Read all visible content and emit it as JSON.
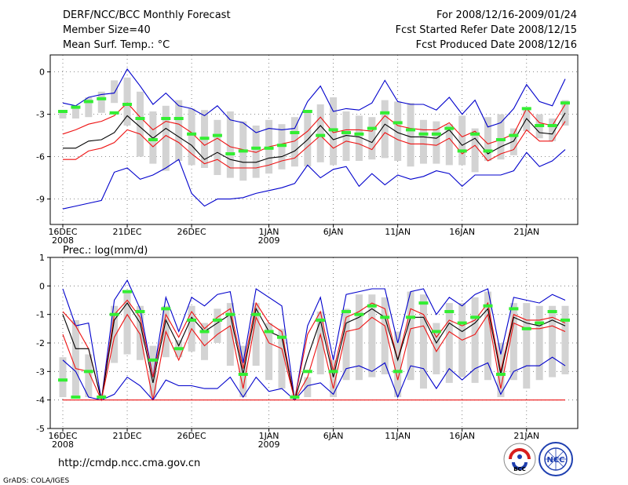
{
  "header": {
    "title": "DERF/NCC/BCC Monthly Forecast",
    "member_size": "Member Size=40",
    "variable": "Mean Surf. Temp.: °C",
    "period": "For 2008/12/16-2009/01/24",
    "fcst_started": "Fcst Started Refer Date 2008/12/15",
    "fcst_produced": "Fcst Produced Date 2008/12/16"
  },
  "footer": {
    "url": "http://cmdp.ncc.cma.gov.cn",
    "grads": "GrADS: COLA/IGES",
    "logo_bcc": "BCC",
    "logo_ncc": "NCC"
  },
  "colors": {
    "box": "#d3d3d3",
    "obs": "#33ee33",
    "mean": "#000000",
    "sd": "#ee1111",
    "extreme": "#0000cc",
    "grid": "#666666"
  },
  "chart_data": [
    {
      "type": "line",
      "title": "Mean Surf. Temp.: °C",
      "xlabel": "",
      "ylabel": "",
      "x_days": 40,
      "x_tick_labels": [
        "16DEC",
        "21DEC",
        "26DEC",
        "1JAN",
        "6JAN",
        "11JAN",
        "16JAN",
        "21JAN"
      ],
      "x_tick_days": [
        1,
        6,
        11,
        17,
        22,
        27,
        32,
        37
      ],
      "x_year_labels": [
        {
          "day": 1,
          "label": "2008"
        },
        {
          "day": 17,
          "label": "2009"
        }
      ],
      "ylim": [
        -10.8,
        1.2
      ],
      "yticks": [
        0,
        -3,
        -6,
        -9
      ],
      "ytick_labels": [
        "0",
        "-3",
        "-6",
        "-9"
      ],
      "box_top": [
        -2.8,
        -2.4,
        -1.8,
        -1.4,
        -0.6,
        -0.4,
        -1.4,
        -2.8,
        -2.4,
        -2.0,
        -2.6,
        -2.7,
        -3.4,
        -2.8,
        -3.5,
        -3.8,
        -3.4,
        -3.7,
        -3.2,
        -2.8,
        -2.3,
        -1.8,
        -2.8,
        -3.1,
        -3.2,
        -2.0,
        -2.1,
        -2.2,
        -3.4,
        -3.5,
        -3.7,
        -3.1,
        -4.0,
        -3.2,
        -3.0,
        -4.0,
        -2.5,
        -3.0,
        -3.3,
        -2.0
      ],
      "box_bottom": [
        -3.3,
        -3.3,
        -3.2,
        -2.9,
        -2.2,
        -3.8,
        -6.0,
        -6.5,
        -7.0,
        -6.3,
        -6.6,
        -6.8,
        -7.3,
        -7.5,
        -7.7,
        -7.5,
        -7.2,
        -6.9,
        -6.7,
        -6.7,
        -6.4,
        -6.6,
        -6.3,
        -6.3,
        -6.2,
        -6.1,
        -6.3,
        -6.7,
        -6.5,
        -6.5,
        -6.6,
        -6.6,
        -7.1,
        -6.3,
        -6.2,
        -5.9,
        -4.2,
        -4.7,
        -4.9,
        -3.8
      ],
      "series": [
        {
          "name": "max",
          "values": [
            -2.2,
            -2.4,
            -1.8,
            -1.6,
            -1.5,
            0.2,
            -1.0,
            -2.3,
            -1.5,
            -2.4,
            -2.6,
            -3.1,
            -2.4,
            -3.4,
            -3.6,
            -4.3,
            -4.0,
            -4.1,
            -4.0,
            -2.1,
            -1.0,
            -2.8,
            -2.6,
            -2.7,
            -2.2,
            -0.6,
            -2.1,
            -2.3,
            -2.3,
            -2.7,
            -1.8,
            -3.0,
            -2.0,
            -3.9,
            -3.6,
            -2.6,
            -0.9,
            -2.1,
            -2.4,
            -0.5
          ]
        },
        {
          "name": "sd_plus",
          "values": [
            -4.4,
            -4.1,
            -3.7,
            -3.5,
            -3.1,
            -2.2,
            -3.2,
            -4.1,
            -3.5,
            -3.7,
            -4.3,
            -5.2,
            -4.7,
            -5.3,
            -5.5,
            -5.7,
            -5.3,
            -5.1,
            -4.9,
            -4.2,
            -3.2,
            -4.3,
            -4.1,
            -4.1,
            -4.2,
            -3.1,
            -3.8,
            -4.0,
            -4.1,
            -4.1,
            -3.6,
            -4.6,
            -4.2,
            -5.1,
            -4.8,
            -4.4,
            -2.6,
            -3.6,
            -3.8,
            -2.3
          ]
        },
        {
          "name": "mean",
          "values": [
            -5.4,
            -5.4,
            -4.9,
            -4.8,
            -4.3,
            -3.1,
            -3.9,
            -4.7,
            -4.0,
            -4.6,
            -5.2,
            -6.2,
            -5.7,
            -6.2,
            -6.4,
            -6.4,
            -6.1,
            -6.0,
            -5.6,
            -4.8,
            -3.8,
            -4.8,
            -4.5,
            -4.6,
            -5.0,
            -3.7,
            -4.3,
            -4.6,
            -4.6,
            -4.7,
            -4.1,
            -5.2,
            -4.7,
            -5.8,
            -5.3,
            -4.9,
            -3.3,
            -4.3,
            -4.4,
            -2.9
          ]
        },
        {
          "name": "sd_minus",
          "values": [
            -6.2,
            -6.2,
            -5.6,
            -5.4,
            -5.0,
            -4.1,
            -4.4,
            -5.3,
            -4.5,
            -5.0,
            -5.8,
            -6.5,
            -6.2,
            -6.8,
            -6.8,
            -6.8,
            -6.6,
            -6.3,
            -6.1,
            -5.3,
            -4.5,
            -5.4,
            -4.9,
            -5.1,
            -5.5,
            -4.3,
            -4.8,
            -5.1,
            -5.1,
            -5.2,
            -4.7,
            -5.8,
            -5.2,
            -6.3,
            -5.8,
            -5.5,
            -4.1,
            -4.9,
            -4.9,
            -3.5
          ]
        },
        {
          "name": "min",
          "values": [
            -9.7,
            -9.5,
            -9.3,
            -9.1,
            -7.1,
            -6.8,
            -7.6,
            -7.3,
            -6.8,
            -6.2,
            -8.6,
            -9.5,
            -9.0,
            -9.0,
            -8.9,
            -8.6,
            -8.4,
            -8.2,
            -7.9,
            -6.6,
            -7.5,
            -6.9,
            -6.7,
            -8.1,
            -7.2,
            -8.0,
            -7.3,
            -7.6,
            -7.4,
            -7.0,
            -7.2,
            -8.1,
            -7.3,
            -7.3,
            -7.3,
            -7.0,
            -5.7,
            -6.7,
            -6.3,
            -5.5
          ]
        }
      ],
      "observed": [
        -2.8,
        -2.5,
        -2.1,
        -1.9,
        -2.9,
        -2.3,
        -3.3,
        -4.8,
        -3.3,
        -3.3,
        -4.4,
        -4.7,
        -4.5,
        -5.8,
        -5.6,
        -5.4,
        -5.4,
        -5.2,
        -4.3,
        -2.8,
        -4.5,
        -4.1,
        -4.3,
        -4.4,
        -4.0,
        -2.9,
        -3.6,
        -4.1,
        -4.4,
        -4.4,
        -4.0,
        -5.6,
        -4.4,
        -5.6,
        -4.8,
        -4.5,
        -2.6,
        -3.8,
        -3.8,
        -2.2
      ]
    },
    {
      "type": "line",
      "title": "Prec.: log(mm/d)",
      "xlabel": "",
      "ylabel": "",
      "x_days": 40,
      "x_tick_labels": [
        "16DEC",
        "21DEC",
        "26DEC",
        "1JAN",
        "6JAN",
        "11JAN",
        "16JAN",
        "21JAN"
      ],
      "x_tick_days": [
        1,
        6,
        11,
        17,
        22,
        27,
        32,
        37
      ],
      "x_year_labels": [
        {
          "day": 1,
          "label": "2008"
        },
        {
          "day": 17,
          "label": "2009"
        }
      ],
      "ylim": [
        -5,
        1
      ],
      "yticks": [
        1,
        0,
        -1,
        -2,
        -3,
        -4,
        -5
      ],
      "ytick_labels": [
        "1",
        "0",
        "-1",
        "-2",
        "-3",
        "-4",
        "-5"
      ],
      "box_top": [
        -2.5,
        -1.2,
        -2.4,
        -3.8,
        -0.7,
        -0.2,
        -0.7,
        -2.1,
        -0.7,
        -1.9,
        -0.7,
        -1.3,
        -0.8,
        -0.6,
        -2.1,
        -0.6,
        -1.3,
        -1.5,
        -3.8,
        -3.2,
        -0.9,
        -2.6,
        -0.8,
        -0.3,
        -0.3,
        -0.4,
        -1.6,
        -0.2,
        -0.3,
        -1.3,
        -0.6,
        -0.6,
        -0.4,
        -0.2,
        -2.0,
        -0.6,
        -0.6,
        -0.7,
        -0.7,
        -0.7
      ],
      "box_bottom": [
        -3.9,
        -3.9,
        -3.9,
        -3.9,
        -2.7,
        -2.4,
        -2.6,
        -3.9,
        -2.5,
        -2.5,
        -2.3,
        -2.6,
        -2.0,
        -2.8,
        -3.9,
        -2.8,
        -3.3,
        -3.6,
        -3.9,
        -3.9,
        -3.1,
        -3.9,
        -3.3,
        -3.3,
        -3.2,
        -3.1,
        -3.9,
        -3.3,
        -3.6,
        -3.1,
        -3.4,
        -3.2,
        -3.4,
        -3.3,
        -3.9,
        -3.3,
        -3.6,
        -3.3,
        -3.2,
        -3.1
      ],
      "series": [
        {
          "name": "max",
          "values": [
            -0.1,
            -1.4,
            -1.3,
            -4.0,
            -0.5,
            0.2,
            -0.8,
            -3.2,
            -0.4,
            -1.6,
            -0.4,
            -0.7,
            -0.3,
            -0.2,
            -2.7,
            -0.1,
            -0.4,
            -0.7,
            -4.0,
            -1.4,
            -0.4,
            -2.6,
            -0.3,
            -0.2,
            -0.1,
            -0.1,
            -2.0,
            -0.2,
            -0.1,
            -1.0,
            -0.4,
            -0.7,
            -0.3,
            -0.1,
            -2.4,
            -0.4,
            -0.5,
            -0.6,
            -0.3,
            -0.5
          ]
        },
        {
          "name": "sd_plus",
          "values": [
            -0.9,
            -1.4,
            -2.2,
            -4.0,
            -1.0,
            -0.5,
            -1.1,
            -3.2,
            -1.0,
            -1.8,
            -0.9,
            -1.5,
            -1.1,
            -0.8,
            -2.9,
            -0.6,
            -1.3,
            -1.6,
            -4.0,
            -1.7,
            -0.9,
            -3.0,
            -1.1,
            -0.9,
            -0.6,
            -0.8,
            -2.6,
            -0.8,
            -1.0,
            -1.8,
            -1.2,
            -1.4,
            -1.2,
            -0.6,
            -3.0,
            -1.0,
            -1.2,
            -1.2,
            -1.1,
            -1.3
          ]
        },
        {
          "name": "mean",
          "values": [
            -1.0,
            -2.2,
            -2.2,
            -4.0,
            -1.2,
            -0.6,
            -1.3,
            -3.4,
            -1.2,
            -2.1,
            -1.1,
            -1.6,
            -1.3,
            -1.0,
            -3.1,
            -0.8,
            -1.6,
            -1.8,
            -4.0,
            -2.5,
            -1.2,
            -3.2,
            -1.3,
            -1.1,
            -0.8,
            -1.1,
            -2.6,
            -1.1,
            -1.1,
            -2.0,
            -1.3,
            -1.6,
            -1.3,
            -0.8,
            -3.1,
            -1.1,
            -1.3,
            -1.4,
            -1.2,
            -1.4
          ]
        },
        {
          "name": "sd_minus",
          "values": [
            -1.7,
            -2.9,
            -3.0,
            -4.0,
            -1.8,
            -1.0,
            -1.7,
            -4.0,
            -1.6,
            -2.6,
            -1.5,
            -2.1,
            -1.7,
            -1.4,
            -3.6,
            -1.1,
            -2.0,
            -2.2,
            -4.0,
            -3.2,
            -1.7,
            -3.6,
            -1.6,
            -1.5,
            -1.1,
            -1.4,
            -3.3,
            -1.5,
            -1.4,
            -2.3,
            -1.6,
            -1.9,
            -1.7,
            -1.0,
            -3.6,
            -1.3,
            -1.5,
            -1.5,
            -1.4,
            -1.6
          ]
        },
        {
          "name": "min",
          "values": [
            -2.6,
            -3.0,
            -3.9,
            -4.0,
            -3.8,
            -3.2,
            -3.5,
            -4.0,
            -3.3,
            -3.5,
            -3.5,
            -3.6,
            -3.6,
            -3.2,
            -3.9,
            -3.2,
            -3.7,
            -3.6,
            -4.0,
            -3.5,
            -3.4,
            -3.8,
            -2.9,
            -2.8,
            -3.0,
            -2.7,
            -3.9,
            -2.8,
            -2.9,
            -3.6,
            -2.9,
            -3.3,
            -2.9,
            -2.7,
            -3.8,
            -3.0,
            -2.8,
            -2.8,
            -2.5,
            -2.8
          ]
        },
        {
          "name": "floor",
          "values": [
            -4.0,
            -4.0,
            -4.0,
            -4.0,
            -4.0,
            -4.0,
            -4.0,
            -4.0,
            -4.0,
            -4.0,
            -4.0,
            -4.0,
            -4.0,
            -4.0,
            -4.0,
            -4.0,
            -4.0,
            -4.0,
            -4.0,
            -4.0,
            -4.0,
            -4.0,
            -4.0,
            -4.0,
            -4.0,
            -4.0,
            -4.0,
            -4.0,
            -4.0,
            -4.0,
            -4.0,
            -4.0,
            -4.0,
            -4.0,
            -4.0,
            -4.0,
            -4.0,
            -4.0,
            -4.0,
            -4.0
          ]
        }
      ],
      "observed": [
        -3.3,
        -3.9,
        -3.0,
        -3.9,
        -1.0,
        -0.2,
        -0.9,
        -2.6,
        -0.8,
        -2.2,
        -1.2,
        -1.6,
        -1.2,
        -1.0,
        -3.1,
        -1.0,
        -1.6,
        -1.8,
        -3.9,
        -3.0,
        -1.2,
        -3.0,
        -0.9,
        -1.0,
        -0.7,
        -1.1,
        -3.0,
        -1.1,
        -0.6,
        -1.6,
        -0.9,
        -1.3,
        -1.1,
        -0.7,
        -3.1,
        -0.8,
        -1.5,
        -1.3,
        -0.9,
        -1.2
      ]
    }
  ]
}
